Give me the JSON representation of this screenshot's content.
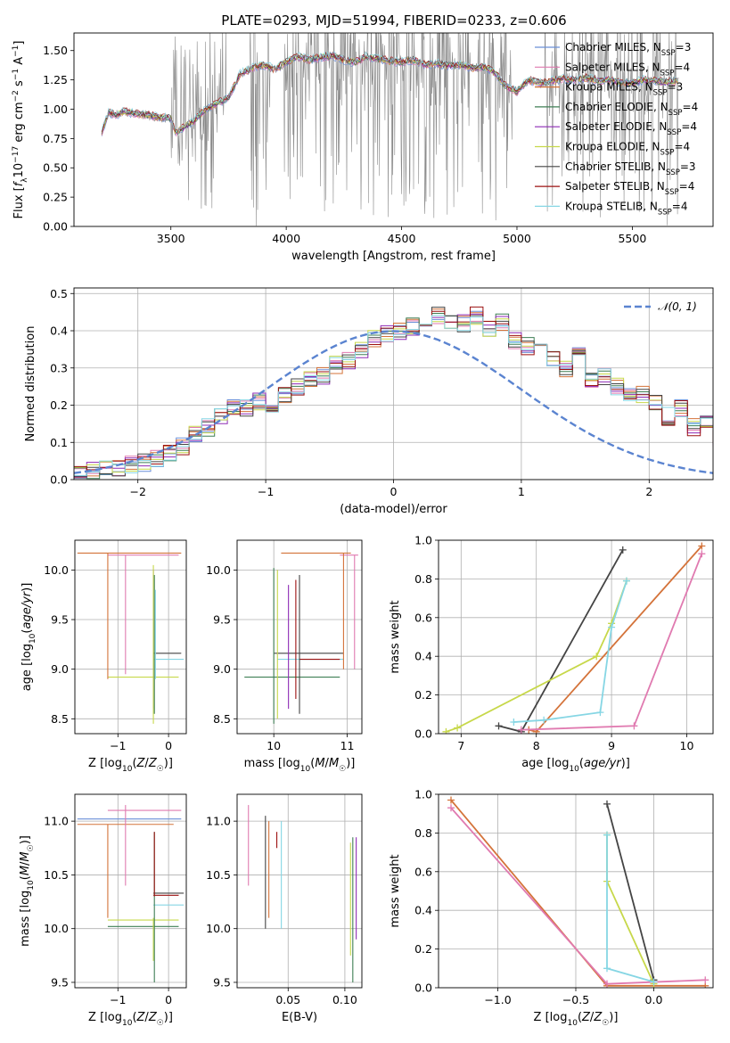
{
  "figure": {
    "title": "PLATE=0293, MJD=51994, FIBERID=0233, z=0.606"
  },
  "colors": {
    "Chabrier MILES": "#6a8fd8",
    "Salpeter MILES": "#e07ab0",
    "Kroupa MILES": "#d4733a",
    "Chabrier ELODIE": "#3f7f55",
    "Salpeter ELODIE": "#8e2bb5",
    "Kroupa ELODIE": "#c7d84a",
    "Chabrier STELIB": "#444444",
    "Salpeter STELIB": "#9c1111",
    "Kroupa STELIB": "#86d6e4",
    "data": "#8a8a8a",
    "gaussian": "#5b84d0"
  },
  "chart_data": [
    {
      "id": "spectrum",
      "type": "line",
      "title": "PLATE=0293, MJD=51994, FIBERID=0233, z=0.606",
      "xlabel": "wavelength [Angstrom, rest frame]",
      "ylabel": "Flux [f_λ 10^-17 erg cm^-2 s^-1 A^-1]",
      "xlim": [
        3080,
        5850
      ],
      "ylim": [
        0,
        1.65
      ],
      "xticks": [
        "3500",
        "4000",
        "4500",
        "5000",
        "5500"
      ],
      "yticks": [
        "0.00",
        "0.25",
        "0.50",
        "0.75",
        "1.00",
        "1.25",
        "1.50"
      ],
      "grid": false,
      "legend_position": "top-right",
      "legend": [
        {
          "label": "Chabrier MILES, N",
          "sub": "SSP",
          "suffix": "=3"
        },
        {
          "label": "Salpeter MILES, N",
          "sub": "SSP",
          "suffix": "=4"
        },
        {
          "label": "Kroupa MILES, N",
          "sub": "SSP",
          "suffix": "=3"
        },
        {
          "label": "Chabrier ELODIE, N",
          "sub": "SSP",
          "suffix": "=4"
        },
        {
          "label": "Salpeter ELODIE, N",
          "sub": "SSP",
          "suffix": "=4"
        },
        {
          "label": "Kroupa ELODIE, N",
          "sub": "SSP",
          "suffix": "=4"
        },
        {
          "label": "Chabrier STELIB, N",
          "sub": "SSP",
          "suffix": "=3"
        },
        {
          "label": "Salpeter STELIB, N",
          "sub": "SSP",
          "suffix": "=4"
        },
        {
          "label": "Kroupa STELIB, N",
          "sub": "SSP",
          "suffix": "=4"
        }
      ],
      "continuum_x": [
        3200,
        3230,
        3260,
        3300,
        3350,
        3400,
        3450,
        3500,
        3520,
        3560,
        3600,
        3650,
        3700,
        3750,
        3800,
        3850,
        3900,
        3950,
        4000,
        4050,
        4100,
        4150,
        4200,
        4250,
        4300,
        4350,
        4400,
        4450,
        4500,
        4550,
        4600,
        4650,
        4700,
        4750,
        4800,
        4850,
        4900,
        4950,
        5000,
        5050,
        5100,
        5150,
        5200,
        5250,
        5300,
        5350,
        5400,
        5450,
        5500,
        5550,
        5600,
        5650,
        5700
      ],
      "continuum_y": [
        0.8,
        0.97,
        0.95,
        0.98,
        0.96,
        0.95,
        0.93,
        0.92,
        0.8,
        0.85,
        0.9,
        1.0,
        1.05,
        1.1,
        1.3,
        1.35,
        1.38,
        1.34,
        1.4,
        1.45,
        1.42,
        1.44,
        1.46,
        1.42,
        1.4,
        1.45,
        1.43,
        1.41,
        1.4,
        1.42,
        1.38,
        1.39,
        1.37,
        1.38,
        1.35,
        1.36,
        1.32,
        1.2,
        1.15,
        1.25,
        1.22,
        1.24,
        1.26,
        1.25,
        1.27,
        1.24,
        1.25,
        1.23,
        1.22,
        1.25,
        1.24,
        1.23,
        1.24
      ]
    },
    {
      "id": "residuals",
      "type": "histogram",
      "xlabel": "(data-model)/error",
      "ylabel": "Normed distribution",
      "xlim": [
        -2.5,
        2.5
      ],
      "ylim": [
        0,
        0.515
      ],
      "xticks": [
        "−2",
        "−1",
        "0",
        "1",
        "2"
      ],
      "yticks": [
        "0.0",
        "0.1",
        "0.2",
        "0.3",
        "0.4",
        "0.5"
      ],
      "grid": true,
      "legend_position": "top-right",
      "legend": [
        "𝒩(0, 1)"
      ],
      "bin_width": 0.1,
      "x_start": -2.5,
      "base_density": [
        0.02,
        0.024,
        0.028,
        0.034,
        0.038,
        0.045,
        0.055,
        0.07,
        0.09,
        0.12,
        0.14,
        0.17,
        0.2,
        0.19,
        0.21,
        0.2,
        0.23,
        0.25,
        0.27,
        0.28,
        0.31,
        0.32,
        0.35,
        0.38,
        0.39,
        0.4,
        0.41,
        0.4,
        0.44,
        0.43,
        0.42,
        0.44,
        0.41,
        0.42,
        0.37,
        0.36,
        0.34,
        0.33,
        0.3,
        0.34,
        0.27,
        0.28,
        0.25,
        0.22,
        0.23,
        0.21,
        0.17,
        0.19,
        0.14,
        0.15,
        0.11,
        0.1,
        0.09,
        0.08,
        0.075,
        0.06,
        0.05,
        0.05,
        0.035,
        0.03
      ]
    },
    {
      "id": "age-vs-Z",
      "type": "errorbar",
      "xlabel": "Z [log10(Z/Z☉)]",
      "ylabel": "age [log10(age/yr)]",
      "xlim": [
        -1.85,
        0.35
      ],
      "ylim": [
        8.35,
        10.3
      ],
      "xticks": [
        "−1",
        "0"
      ],
      "yticks": [
        "8.5",
        "9.0",
        "9.5",
        "10.0"
      ],
      "grid": true
    },
    {
      "id": "age-vs-mass",
      "type": "errorbar",
      "xlabel": "mass [log10(M/M☉)]",
      "ylabel": "",
      "xlim": [
        9.5,
        11.2
      ],
      "ylim": [
        8.35,
        10.3
      ],
      "xticks": [
        "10",
        "11"
      ],
      "yticks": [
        "8.5",
        "9.0",
        "9.5",
        "10.0"
      ],
      "grid": true
    },
    {
      "id": "weight-vs-age",
      "type": "line",
      "xlabel": "age [log10(age/yr)]",
      "ylabel": "mass weight",
      "xlim": [
        6.7,
        10.35
      ],
      "ylim": [
        0,
        1.0
      ],
      "xticks": [
        "7",
        "8",
        "9",
        "10"
      ],
      "yticks": [
        "0.0",
        "0.2",
        "0.4",
        "0.6",
        "0.8",
        "1.0"
      ],
      "grid": true,
      "series": [
        {
          "name": "Chabrier STELIB",
          "x": [
            7.5,
            7.8,
            9.15
          ],
          "y": [
            0.04,
            0.01,
            0.95
          ]
        },
        {
          "name": "Kroupa MILES",
          "x": [
            7.9,
            8.0,
            10.2
          ],
          "y": [
            0.02,
            0.01,
            0.97
          ]
        },
        {
          "name": "Salpeter MILES",
          "x": [
            7.8,
            9.3,
            10.2
          ],
          "y": [
            0.02,
            0.04,
            0.93
          ]
        },
        {
          "name": "Kroupa ELODIE",
          "x": [
            6.8,
            6.95,
            8.8,
            9.0,
            9.2
          ],
          "y": [
            0.01,
            0.03,
            0.4,
            0.57,
            0.79
          ]
        },
        {
          "name": "Kroupa STELIB",
          "x": [
            7.7,
            8.1,
            8.85,
            9.0,
            9.2
          ],
          "y": [
            0.06,
            0.07,
            0.11,
            0.55,
            0.79
          ]
        }
      ]
    },
    {
      "id": "mass-vs-Z",
      "type": "errorbar",
      "xlabel": "Z [log10(Z/Z☉)]",
      "ylabel": "mass [log10(M/M☉)]",
      "xlim": [
        -1.85,
        0.35
      ],
      "ylim": [
        9.45,
        11.25
      ],
      "xticks": [
        "−1",
        "0"
      ],
      "yticks": [
        "9.5",
        "10.0",
        "10.5",
        "11.0"
      ],
      "grid": true
    },
    {
      "id": "mass-vs-EBV",
      "type": "errorbar",
      "xlabel": "E(B-V)",
      "ylabel": "",
      "xlim": [
        0.005,
        0.115
      ],
      "ylim": [
        9.45,
        11.25
      ],
      "xticks": [
        "0.05",
        "0.10"
      ],
      "yticks": [
        "9.5",
        "10.0",
        "10.5",
        "11.0"
      ],
      "grid": true
    },
    {
      "id": "weight-vs-Z",
      "type": "line",
      "xlabel": "Z [log10(Z/Z☉)]",
      "ylabel": "mass weight",
      "xlim": [
        -1.38,
        0.38
      ],
      "ylim": [
        0,
        1.0
      ],
      "xticks": [
        "−1.0",
        "−0.5",
        "0.0"
      ],
      "yticks": [
        "0.0",
        "0.2",
        "0.4",
        "0.6",
        "0.8",
        "1.0"
      ],
      "grid": true,
      "series": [
        {
          "name": "Kroupa MILES",
          "x": [
            -1.3,
            -0.3,
            0.33
          ],
          "y": [
            0.97,
            0.01,
            0.01
          ]
        },
        {
          "name": "Salpeter MILES",
          "x": [
            -1.3,
            -0.3,
            0.33
          ],
          "y": [
            0.93,
            0.02,
            0.04
          ]
        },
        {
          "name": "Chabrier STELIB",
          "x": [
            -0.3,
            0.0
          ],
          "y": [
            0.95,
            0.04
          ]
        },
        {
          "name": "Kroupa ELODIE",
          "x": [
            -0.3,
            -0.3,
            0.0
          ],
          "y": [
            0.79,
            0.55,
            0.02
          ]
        },
        {
          "name": "Kroupa STELIB",
          "x": [
            -0.3,
            -0.3,
            0.0
          ],
          "y": [
            0.79,
            0.1,
            0.03
          ]
        }
      ]
    }
  ]
}
